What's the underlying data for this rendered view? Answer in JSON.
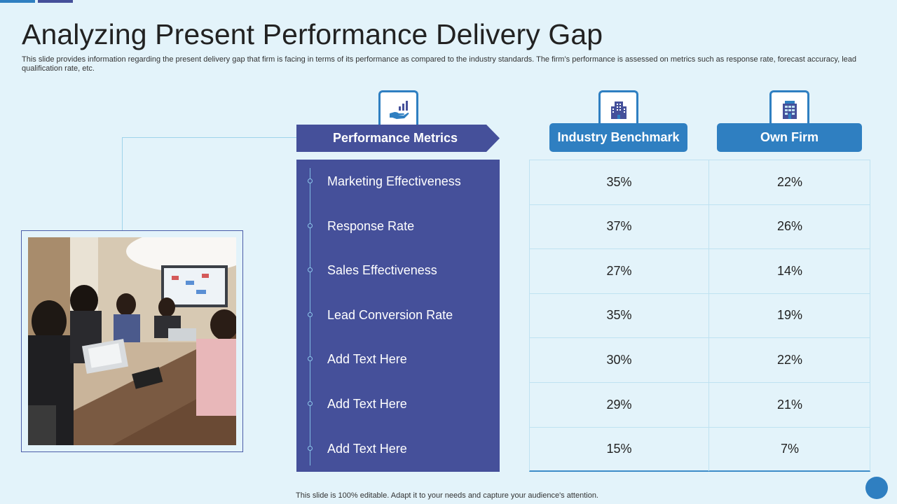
{
  "slide": {
    "title": "Analyzing Present Performance Delivery Gap",
    "subtitle": "This slide provides information regarding the present delivery gap that firm is facing in terms of its performance as compared to the industry standards. The firm’s performance is assessed on metrics such as response rate, forecast accuracy,  lead qualification rate, etc.",
    "footer": "This slide is 100% editable. Adapt it to your needs and capture your audience's attention."
  },
  "headers": {
    "metrics": "Performance Metrics",
    "benchmark": "Industry Benchmark",
    "own_firm": "Own Firm"
  },
  "icons": {
    "metrics": "hand-chart-icon",
    "benchmark": "building-icon",
    "own_firm": "office-building-icon"
  },
  "rows": [
    {
      "metric": "Marketing Effectiveness",
      "benchmark": "35%",
      "own": "22%"
    },
    {
      "metric": "Response Rate",
      "benchmark": "37%",
      "own": "26%"
    },
    {
      "metric": "Sales Effectiveness",
      "benchmark": "27%",
      "own": "14%"
    },
    {
      "metric": "Lead Conversion Rate",
      "benchmark": "35%",
      "own": "19%"
    },
    {
      "metric": "Add Text Here",
      "benchmark": "30%",
      "own": "22%"
    },
    {
      "metric": "Add Text Here",
      "benchmark": "29%",
      "own": "21%"
    },
    {
      "metric": "Add Text Here",
      "benchmark": "15%",
      "own": "7%"
    }
  ],
  "colors": {
    "background": "#e3f3fa",
    "navy": "#45509a",
    "blue": "#2f7fc1"
  }
}
